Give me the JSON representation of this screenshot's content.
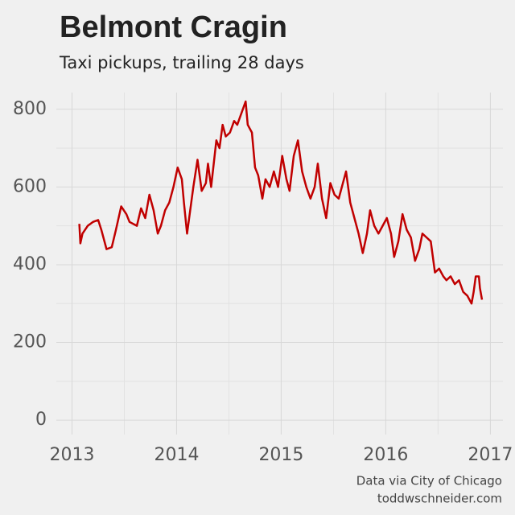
{
  "chart_data": {
    "type": "line",
    "title": "Belmont Cragin",
    "subtitle": "Taxi pickups, trailing 28 days",
    "source_lines": [
      "Data via City of Chicago",
      "toddwschneider.com"
    ],
    "xlim": [
      2012.85,
      2017.12
    ],
    "ylim": [
      -37,
      843
    ],
    "xticks": [
      2013,
      2014,
      2015,
      2016,
      2017
    ],
    "yticks": [
      0,
      200,
      400,
      600,
      800
    ],
    "xminor": [
      2013.5,
      2014.5,
      2015.5,
      2016.5
    ],
    "yminor": [
      100,
      300,
      500,
      700
    ],
    "grid": true,
    "x": [
      2013.07,
      2013.08,
      2013.1,
      2013.15,
      2013.2,
      2013.25,
      2013.28,
      2013.33,
      2013.38,
      2013.42,
      2013.47,
      2013.52,
      2013.55,
      2013.62,
      2013.66,
      2013.7,
      2013.74,
      2013.78,
      2013.82,
      2013.85,
      2013.89,
      2013.93,
      2013.97,
      2014.01,
      2014.05,
      2014.07,
      2014.1,
      2014.12,
      2014.16,
      2014.2,
      2014.24,
      2014.28,
      2014.3,
      2014.33,
      2014.38,
      2014.41,
      2014.44,
      2014.47,
      2014.51,
      2014.55,
      2014.58,
      2014.62,
      2014.66,
      2014.68,
      2014.72,
      2014.75,
      2014.78,
      2014.82,
      2014.85,
      2014.89,
      2014.93,
      2014.97,
      2015.01,
      2015.05,
      2015.08,
      2015.12,
      2015.16,
      2015.2,
      2015.24,
      2015.28,
      2015.32,
      2015.35,
      2015.39,
      2015.43,
      2015.47,
      2015.51,
      2015.55,
      2015.58,
      2015.62,
      2015.66,
      2015.7,
      2015.74,
      2015.78,
      2015.82,
      2015.85,
      2015.89,
      2015.93,
      2015.97,
      2016.01,
      2016.05,
      2016.08,
      2016.12,
      2016.16,
      2016.2,
      2016.24,
      2016.28,
      2016.32,
      2016.35,
      2016.39,
      2016.43,
      2016.47,
      2016.51,
      2016.55,
      2016.58,
      2016.62,
      2016.66,
      2016.7,
      2016.74,
      2016.78,
      2016.82,
      2016.84,
      2016.86,
      2016.89,
      2016.9,
      2016.92
    ],
    "series": [
      {
        "name": "Taxi pickups",
        "color": "#c00000",
        "values": [
          505,
          455,
          480,
          500,
          510,
          515,
          490,
          440,
          445,
          490,
          550,
          530,
          510,
          500,
          545,
          520,
          580,
          540,
          480,
          500,
          540,
          560,
          600,
          650,
          620,
          560,
          480,
          520,
          600,
          670,
          590,
          610,
          660,
          600,
          720,
          700,
          760,
          730,
          740,
          770,
          760,
          790,
          820,
          760,
          740,
          650,
          630,
          570,
          620,
          600,
          640,
          600,
          680,
          620,
          590,
          680,
          720,
          640,
          600,
          570,
          600,
          660,
          570,
          520,
          610,
          580,
          570,
          600,
          640,
          560,
          520,
          480,
          430,
          480,
          540,
          500,
          480,
          500,
          520,
          480,
          420,
          460,
          530,
          490,
          470,
          410,
          440,
          480,
          470,
          460,
          380,
          390,
          370,
          360,
          370,
          350,
          360,
          330,
          320,
          300,
          330,
          370,
          370,
          340,
          310
        ]
      }
    ]
  }
}
